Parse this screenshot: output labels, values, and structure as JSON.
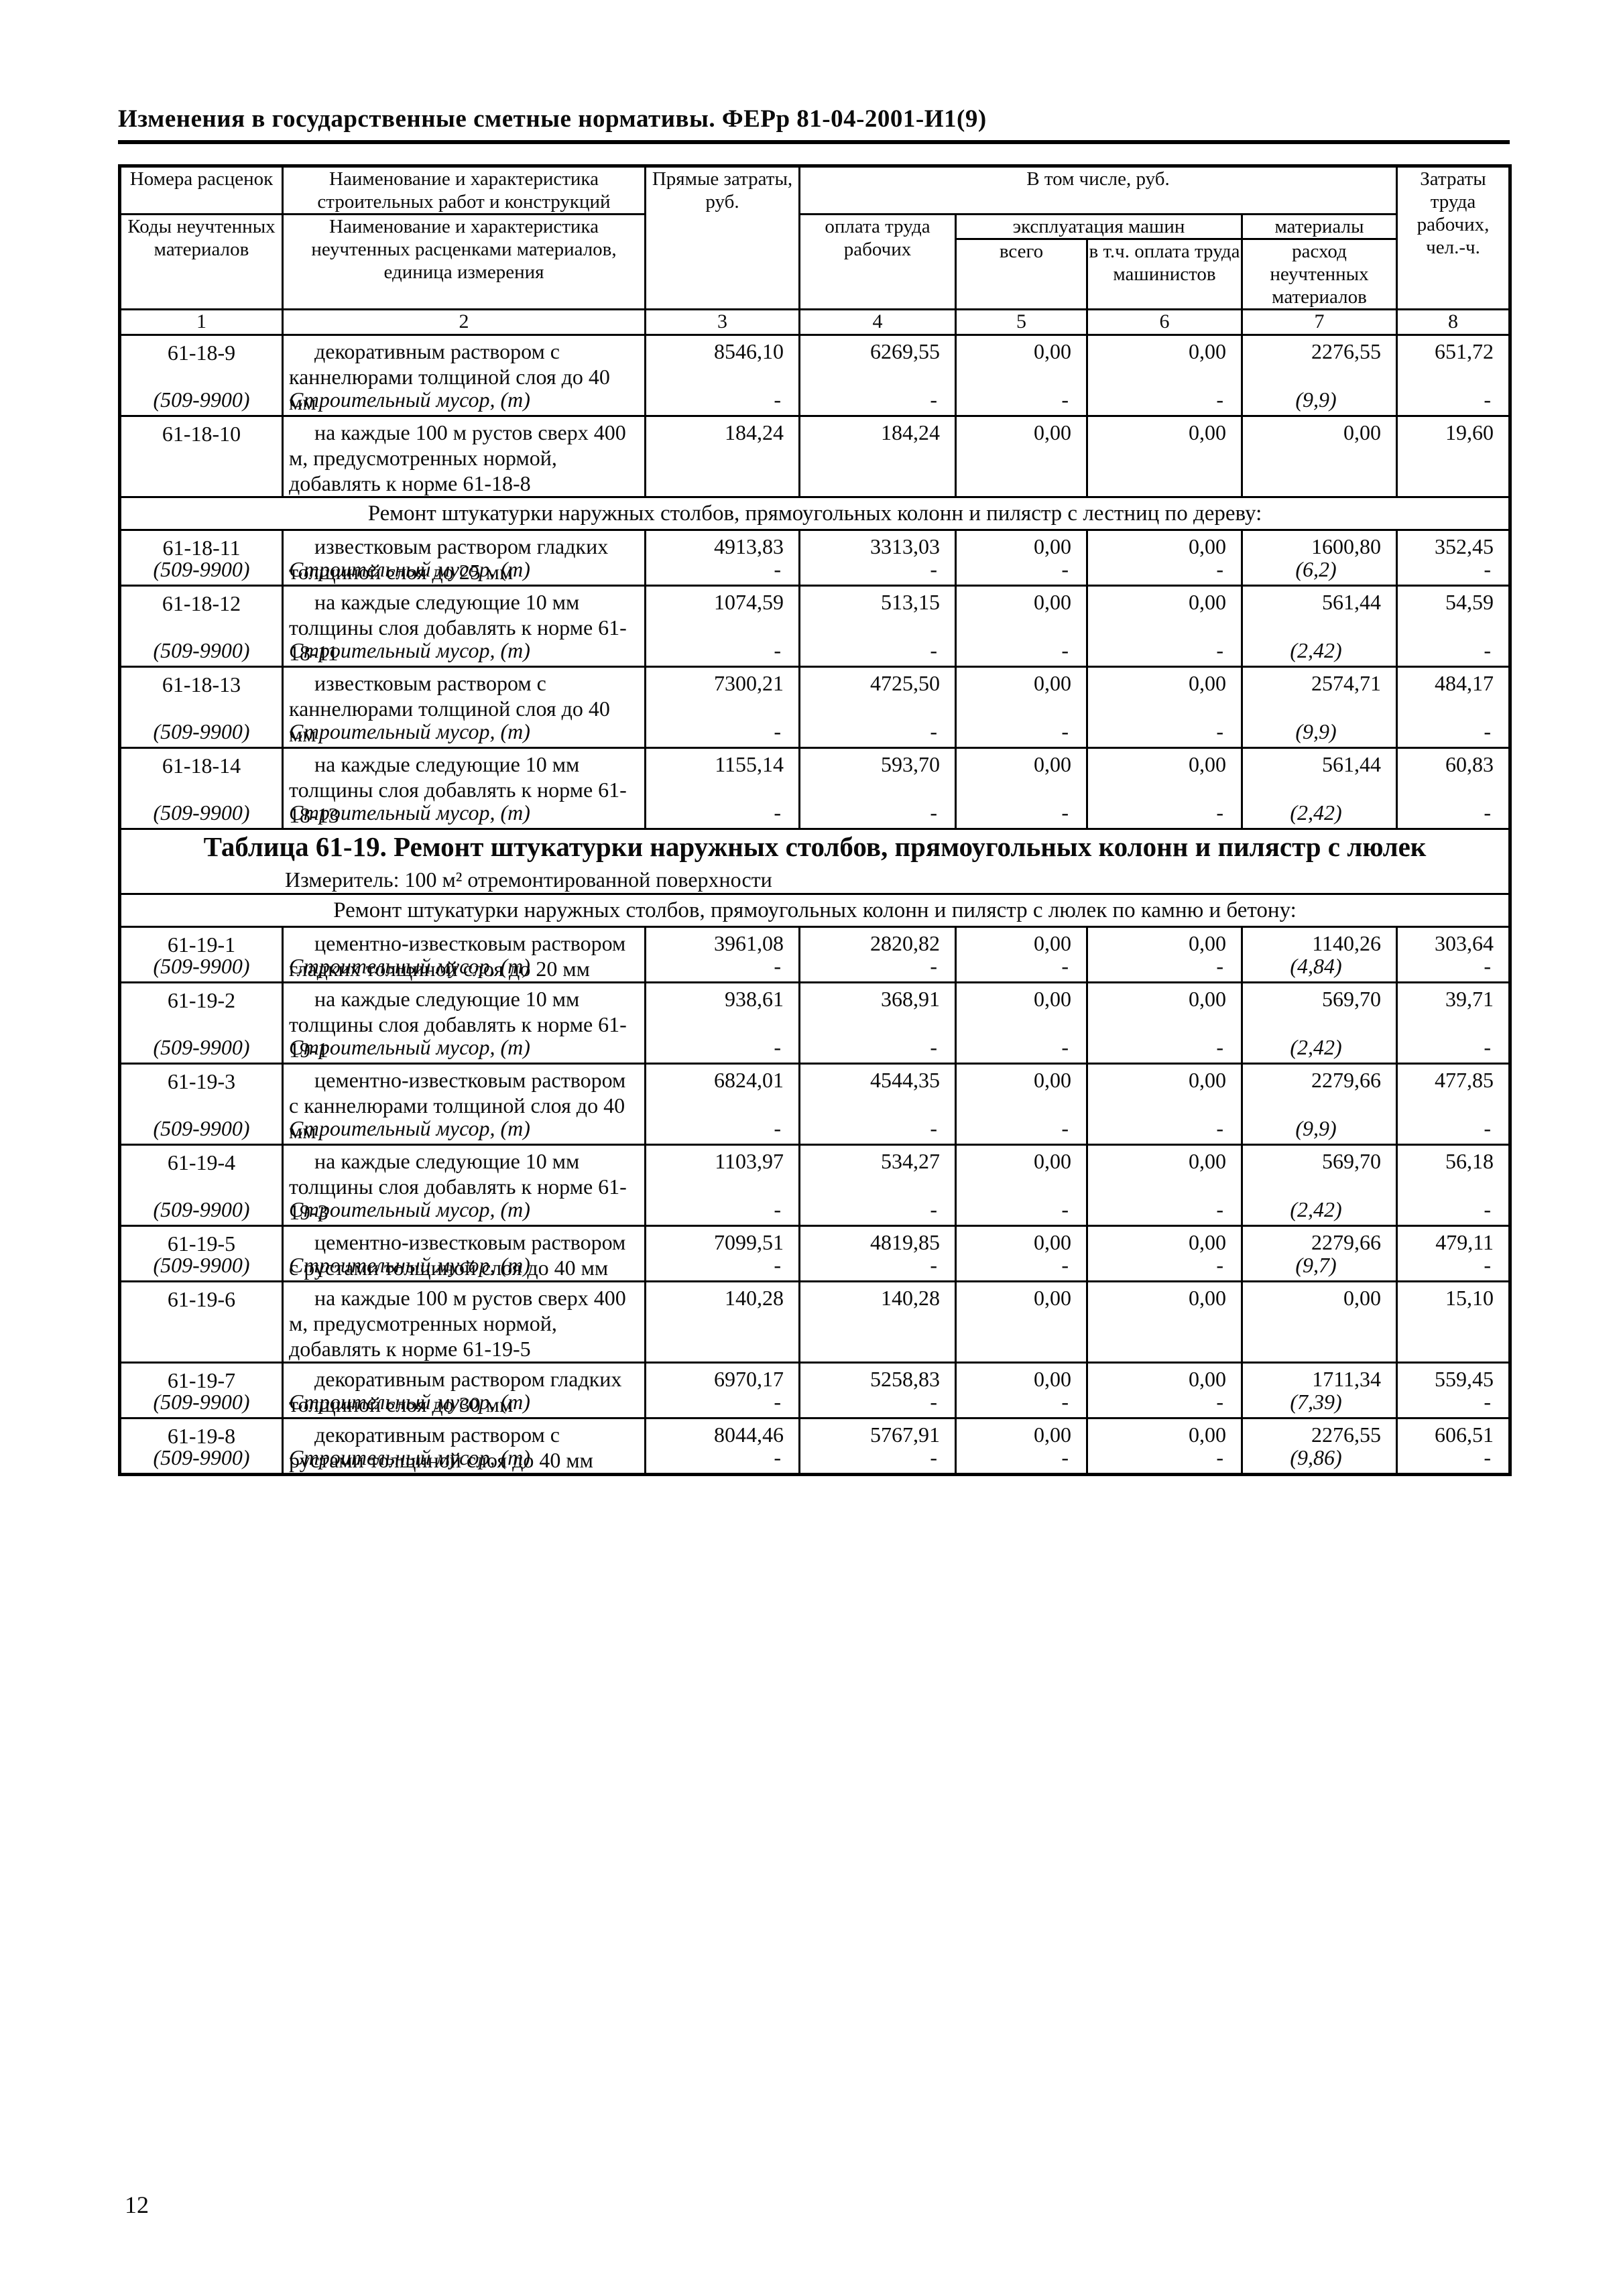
{
  "page": {
    "header_title": "Изменения в государственные сметные нормативы. ФЕРр 81-04-2001-И1(9)",
    "page_number": "12"
  },
  "table": {
    "header": {
      "col1_top": "Номера расценок",
      "col1_bottom": "Коды неучтенных материалов",
      "col2_top": "Наименование и характеристика строительных работ и конструкций",
      "col2_bottom": "Наименование и характеристика неучтенных расценками материалов, единица измерения",
      "col3": "Прямые затраты, руб.",
      "group_vtom": "В том числе, руб.",
      "col4": "оплата труда рабочих",
      "group_mach": "эксплуатация машин",
      "col5": "всего",
      "col6": "в т.ч. оплата труда машинистов",
      "group_mat": "материалы",
      "col7": "расход неучтенных материалов",
      "col8": "Затраты труда рабочих, чел.-ч.",
      "col_numbers": [
        "1",
        "2",
        "3",
        "4",
        "5",
        "6",
        "7",
        "8"
      ]
    },
    "rows": [
      {
        "type": "item",
        "code": "61-18-9",
        "desc": "декоративным раствором с каннелюрами толщиной слоя до 40 мм",
        "values": [
          "8546,10",
          "6269,55",
          "0,00",
          "0,00",
          "2276,55",
          "651,72"
        ],
        "musor": {
          "code": "(509-9900)",
          "desc": "Строительный мусор, (т)",
          "values": [
            "-",
            "-",
            "-",
            "-",
            "(9,9)",
            "-"
          ]
        }
      },
      {
        "type": "item",
        "code": "61-18-10",
        "desc": "на каждые 100 м рустов сверх 400 м, предусмотренных нормой, добавлять к норме 61-18-8",
        "values": [
          "184,24",
          "184,24",
          "0,00",
          "0,00",
          "0,00",
          "19,60"
        ]
      },
      {
        "type": "section",
        "label": "Ремонт штукатурки наружных столбов, прямоугольных колонн и пилястр с лестниц по дереву:"
      },
      {
        "type": "item",
        "code": "61-18-11",
        "desc": "известковым раствором гладких толщиной слоя до 25 мм",
        "values": [
          "4913,83",
          "3313,03",
          "0,00",
          "0,00",
          "1600,80",
          "352,45"
        ],
        "musor": {
          "code": "(509-9900)",
          "desc": "Строительный мусор, (т)",
          "values": [
            "-",
            "-",
            "-",
            "-",
            "(6,2)",
            "-"
          ]
        }
      },
      {
        "type": "item",
        "code": "61-18-12",
        "desc": "на каждые следующие 10 мм толщины слоя добавлять к норме 61-18-11",
        "values": [
          "1074,59",
          "513,15",
          "0,00",
          "0,00",
          "561,44",
          "54,59"
        ],
        "musor": {
          "code": "(509-9900)",
          "desc": "Строительный мусор, (т)",
          "values": [
            "-",
            "-",
            "-",
            "-",
            "(2,42)",
            "-"
          ]
        }
      },
      {
        "type": "item",
        "code": "61-18-13",
        "desc": "известковым раствором с каннелюрами толщиной слоя до 40 мм",
        "values": [
          "7300,21",
          "4725,50",
          "0,00",
          "0,00",
          "2574,71",
          "484,17"
        ],
        "musor": {
          "code": "(509-9900)",
          "desc": "Строительный мусор, (т)",
          "values": [
            "-",
            "-",
            "-",
            "-",
            "(9,9)",
            "-"
          ]
        }
      },
      {
        "type": "item",
        "code": "61-18-14",
        "desc": "на каждые следующие 10 мм толщины слоя добавлять к норме 61-18-13",
        "values": [
          "1155,14",
          "593,70",
          "0,00",
          "0,00",
          "561,44",
          "60,83"
        ],
        "musor": {
          "code": "(509-9900)",
          "desc": "Строительный мусор, (т)",
          "values": [
            "-",
            "-",
            "-",
            "-",
            "(2,42)",
            "-"
          ]
        }
      },
      {
        "type": "title",
        "title": "Таблица 61-19. Ремонт штукатурки наружных столбов, прямоугольных колонн и пилястр с люлек",
        "izmeritel": "Измеритель: 100 м² отремонтированной поверхности"
      },
      {
        "type": "section",
        "label": "Ремонт штукатурки наружных столбов, прямоугольных колонн и пилястр с люлек по камню и бетону:"
      },
      {
        "type": "item",
        "code": "61-19-1",
        "desc": "цементно-известковым раствором гладких толщиной слоя до 20 мм",
        "values": [
          "3961,08",
          "2820,82",
          "0,00",
          "0,00",
          "1140,26",
          "303,64"
        ],
        "musor": {
          "code": "(509-9900)",
          "desc": "Строительный мусор, (т)",
          "values": [
            "-",
            "-",
            "-",
            "-",
            "(4,84)",
            "-"
          ]
        }
      },
      {
        "type": "item",
        "code": "61-19-2",
        "desc": "на каждые следующие 10 мм толщины слоя добавлять к норме 61-19-1",
        "values": [
          "938,61",
          "368,91",
          "0,00",
          "0,00",
          "569,70",
          "39,71"
        ],
        "musor": {
          "code": "(509-9900)",
          "desc": "Строительный мусор, (т)",
          "values": [
            "-",
            "-",
            "-",
            "-",
            "(2,42)",
            "-"
          ]
        }
      },
      {
        "type": "item",
        "code": "61-19-3",
        "desc": "цементно-известковым раствором с каннелюрами толщиной слоя до 40 мм",
        "values": [
          "6824,01",
          "4544,35",
          "0,00",
          "0,00",
          "2279,66",
          "477,85"
        ],
        "musor": {
          "code": "(509-9900)",
          "desc": "Строительный мусор, (т)",
          "values": [
            "-",
            "-",
            "-",
            "-",
            "(9,9)",
            "-"
          ]
        }
      },
      {
        "type": "item",
        "code": "61-19-4",
        "desc": "на каждые следующие 10 мм толщины слоя добавлять к норме 61-19-3",
        "values": [
          "1103,97",
          "534,27",
          "0,00",
          "0,00",
          "569,70",
          "56,18"
        ],
        "musor": {
          "code": "(509-9900)",
          "desc": "Строительный мусор, (т)",
          "values": [
            "-",
            "-",
            "-",
            "-",
            "(2,42)",
            "-"
          ]
        }
      },
      {
        "type": "item",
        "code": "61-19-5",
        "desc": "цементно-известковым раствором с рустами толщиной слоя до 40 мм",
        "values": [
          "7099,51",
          "4819,85",
          "0,00",
          "0,00",
          "2279,66",
          "479,11"
        ],
        "musor": {
          "code": "(509-9900)",
          "desc": "Строительный мусор, (т)",
          "values": [
            "-",
            "-",
            "-",
            "-",
            "(9,7)",
            "-"
          ]
        }
      },
      {
        "type": "item",
        "code": "61-19-6",
        "desc": "на каждые 100 м рустов сверх 400 м, предусмотренных нормой, добавлять к норме 61-19-5",
        "values": [
          "140,28",
          "140,28",
          "0,00",
          "0,00",
          "0,00",
          "15,10"
        ]
      },
      {
        "type": "item",
        "code": "61-19-7",
        "desc": "декоративным раствором гладких толщиной слоя до 30 мм",
        "values": [
          "6970,17",
          "5258,83",
          "0,00",
          "0,00",
          "1711,34",
          "559,45"
        ],
        "musor": {
          "code": "(509-9900)",
          "desc": "Строительный мусор, (т)",
          "values": [
            "-",
            "-",
            "-",
            "-",
            "(7,39)",
            "-"
          ]
        }
      },
      {
        "type": "item",
        "code": "61-19-8",
        "desc": "декоративным раствором с рустами толщиной слоя до 40 мм",
        "values": [
          "8044,46",
          "5767,91",
          "0,00",
          "0,00",
          "2276,55",
          "606,51"
        ],
        "musor": {
          "code": "(509-9900)",
          "desc": "Строительный мусор, (т)",
          "values": [
            "-",
            "-",
            "-",
            "-",
            "(9,86)",
            "-"
          ]
        }
      }
    ]
  }
}
